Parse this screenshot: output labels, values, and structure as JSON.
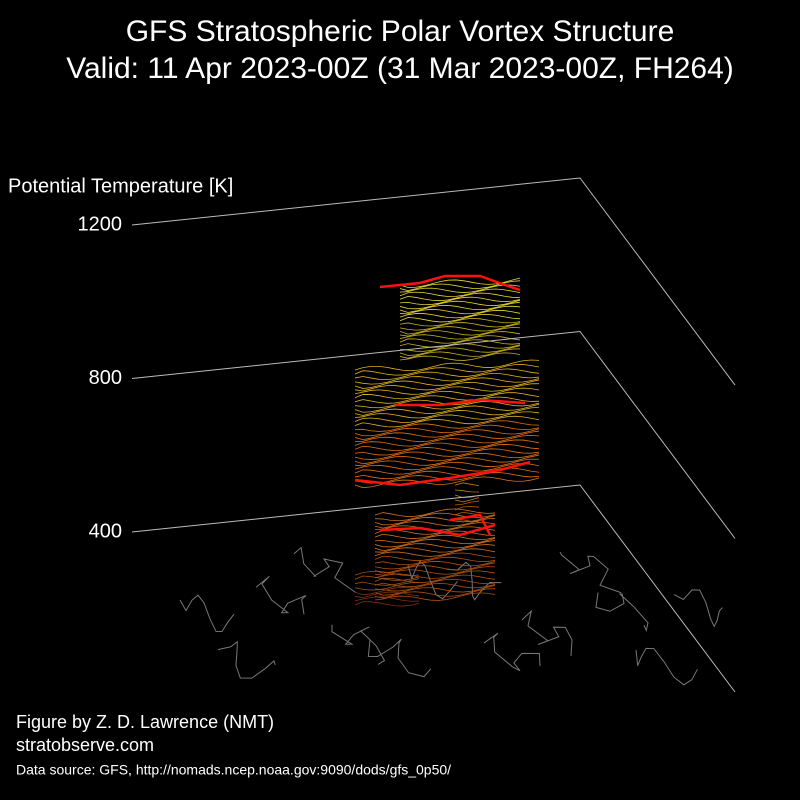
{
  "chart_data": {
    "type": "3d-vortex",
    "title": "GFS Stratospheric Polar Vortex Structure",
    "subtitle": "Valid: 11 Apr 2023-00Z  (31 Mar 2023-00Z, FH264)",
    "z_label": "Potential Temperature [K]",
    "ylim": [
      400,
      1200
    ],
    "yticks": [
      400,
      800,
      1200
    ],
    "credit": "Figure by Z. D. Lawrence (NMT)",
    "website": "stratobserve.com",
    "source": "Data source: GFS, http://nomads.ncep.noaa.gov:9090/dods/gfs_0p50/"
  }
}
